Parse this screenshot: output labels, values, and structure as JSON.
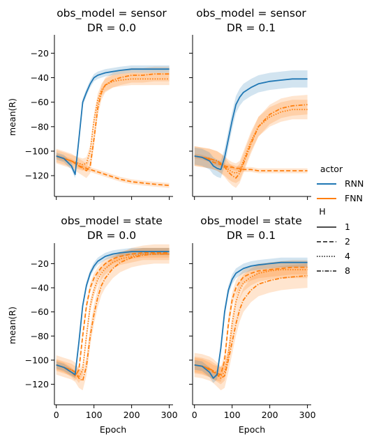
{
  "colors": {
    "RNN": "#1f77b4",
    "FNN": "#ff7f0e"
  },
  "legend": {
    "actor_title": "actor",
    "actor_items": [
      "RNN",
      "FNN"
    ],
    "h_title": "H",
    "h_items": [
      "1",
      "2",
      "4",
      "8"
    ],
    "h_styles": [
      "solid",
      "dashed",
      "dotted",
      "dashdot"
    ]
  },
  "axes": {
    "xlabel": "Epoch",
    "ylabel": "mean(R)",
    "x_ticks": [
      "0",
      "100",
      "200",
      "300"
    ],
    "y_ticks_row1": [
      "−20",
      "−40",
      "−60",
      "−80",
      "−100",
      "−120"
    ],
    "y_ticks_row2": [
      "−20",
      "−40",
      "−60",
      "−80",
      "−100",
      "−120"
    ]
  },
  "panels": [
    {
      "title_line1": "obs_model = sensor",
      "title_line2": "DR = 0.0"
    },
    {
      "title_line1": "obs_model = sensor",
      "title_line2": "DR = 0.1"
    },
    {
      "title_line1": "obs_model = state",
      "title_line2": "DR = 0.0"
    },
    {
      "title_line1": "obs_model = state",
      "title_line2": "DR = 0.1"
    }
  ],
  "chart_data": {
    "type": "line",
    "facet_rows": "obs_model",
    "facet_cols": "DR",
    "xlim": [
      -5,
      310
    ],
    "ylim_row1": [
      -137,
      -5
    ],
    "ylim_row2": [
      -137,
      -3
    ],
    "x": [
      0,
      20,
      40,
      50,
      60,
      70,
      80,
      90,
      100,
      110,
      120,
      130,
      150,
      170,
      200,
      230,
      260,
      300
    ],
    "subplots": [
      {
        "obs_model": "sensor",
        "DR": 0.0,
        "series": [
          {
            "actor": "RNN",
            "H": "1",
            "values": [
              -104,
              -106,
              -112,
              -119,
              -90,
              -60,
              -52,
              -45,
              -40,
              -38,
              -37,
              -36,
              -35,
              -34,
              -33,
              -33,
              -33,
              -33
            ],
            "band": 3
          },
          {
            "actor": "FNN",
            "H": "2",
            "values": [
              -104,
              -106,
              -108,
              -110,
              -112,
              -113,
              -114,
              -115,
              -116,
              -117,
              -118,
              -119,
              -121,
              -123,
              -125,
              -126,
              -127,
              -128
            ],
            "band": 2
          },
          {
            "actor": "FNN",
            "H": "4",
            "values": [
              -104,
              -106,
              -108,
              -109,
              -110,
              -111,
              -110,
              -100,
              -75,
              -58,
              -50,
              -46,
              -43,
              -42,
              -41,
              -41,
              -41,
              -41
            ],
            "band": 5
          },
          {
            "actor": "FNN",
            "H": "8",
            "values": [
              -104,
              -106,
              -108,
              -110,
              -112,
              -114,
              -116,
              -112,
              -90,
              -65,
              -52,
              -46,
              -42,
              -40,
              -38,
              -38,
              -37,
              -37
            ],
            "band": 6
          }
        ]
      },
      {
        "obs_model": "sensor",
        "DR": 0.1,
        "series": [
          {
            "actor": "RNN",
            "H": "1",
            "values": [
              -104,
              -105,
              -108,
              -112,
              -114,
              -115,
              -105,
              -90,
              -75,
              -62,
              -56,
              -52,
              -48,
              -45,
              -43,
              -42,
              -41,
              -41
            ],
            "band": 7
          },
          {
            "actor": "FNN",
            "H": "2",
            "values": [
              -104,
              -105,
              -107,
              -109,
              -110,
              -111,
              -112,
              -113,
              -113,
              -114,
              -114,
              -115,
              -115,
              -116,
              -116,
              -116,
              -116,
              -116
            ],
            "band": 2
          },
          {
            "actor": "FNN",
            "H": "4",
            "values": [
              -104,
              -105,
              -106,
              -107,
              -108,
              -110,
              -112,
              -115,
              -117,
              -118,
              -116,
              -108,
              -92,
              -80,
              -72,
              -68,
              -66,
              -66
            ],
            "band": 8
          },
          {
            "actor": "FNN",
            "H": "8",
            "values": [
              -104,
              -105,
              -106,
              -107,
              -108,
              -110,
              -113,
              -117,
              -120,
              -122,
              -118,
              -110,
              -94,
              -80,
              -70,
              -65,
              -63,
              -62
            ],
            "band": 8
          }
        ]
      },
      {
        "obs_model": "state",
        "DR": 0.0,
        "series": [
          {
            "actor": "RNN",
            "H": "1",
            "values": [
              -104,
              -106,
              -110,
              -112,
              -85,
              -55,
              -38,
              -28,
              -22,
              -18,
              -16,
              -14,
              -12,
              -11,
              -10,
              -10,
              -10,
              -10
            ],
            "band": 3
          },
          {
            "actor": "FNN",
            "H": "2",
            "values": [
              -104,
              -106,
              -110,
              -113,
              -108,
              -80,
              -55,
              -40,
              -32,
              -27,
              -23,
              -20,
              -16,
              -14,
              -12,
              -11,
              -11,
              -11
            ],
            "band": 4
          },
          {
            "actor": "FNN",
            "H": "4",
            "values": [
              -104,
              -106,
              -108,
              -110,
              -114,
              -108,
              -80,
              -55,
              -42,
              -33,
              -28,
              -24,
              -19,
              -16,
              -14,
              -12,
              -12,
              -12
            ],
            "band": 5
          },
          {
            "actor": "FNN",
            "H": "8",
            "values": [
              -104,
              -106,
              -108,
              -110,
              -115,
              -117,
              -105,
              -80,
              -62,
              -48,
              -38,
              -32,
              -24,
              -19,
              -15,
              -13,
              -12,
              -12
            ],
            "band": 8
          }
        ]
      },
      {
        "obs_model": "state",
        "DR": 0.1,
        "series": [
          {
            "actor": "RNN",
            "H": "1",
            "values": [
              -104,
              -105,
              -110,
              -115,
              -112,
              -90,
              -60,
              -42,
              -33,
              -28,
              -26,
              -24,
              -22,
              -21,
              -20,
              -19,
              -19,
              -19
            ],
            "band": 4
          },
          {
            "actor": "FNN",
            "H": "2",
            "values": [
              -104,
              -105,
              -108,
              -110,
              -111,
              -112,
              -100,
              -70,
              -50,
              -40,
              -35,
              -31,
              -28,
              -26,
              -25,
              -24,
              -23,
              -23
            ],
            "band": 6
          },
          {
            "actor": "FNN",
            "H": "4",
            "values": [
              -104,
              -105,
              -107,
              -109,
              -111,
              -113,
              -110,
              -95,
              -70,
              -52,
              -42,
              -36,
              -31,
              -28,
              -26,
              -25,
              -25,
              -25
            ],
            "band": 7
          },
          {
            "actor": "FNN",
            "H": "8",
            "values": [
              -104,
              -105,
              -107,
              -109,
              -112,
              -115,
              -113,
              -100,
              -85,
              -70,
              -58,
              -50,
              -42,
              -37,
              -34,
              -32,
              -31,
              -30
            ],
            "band": 10
          }
        ]
      }
    ]
  }
}
